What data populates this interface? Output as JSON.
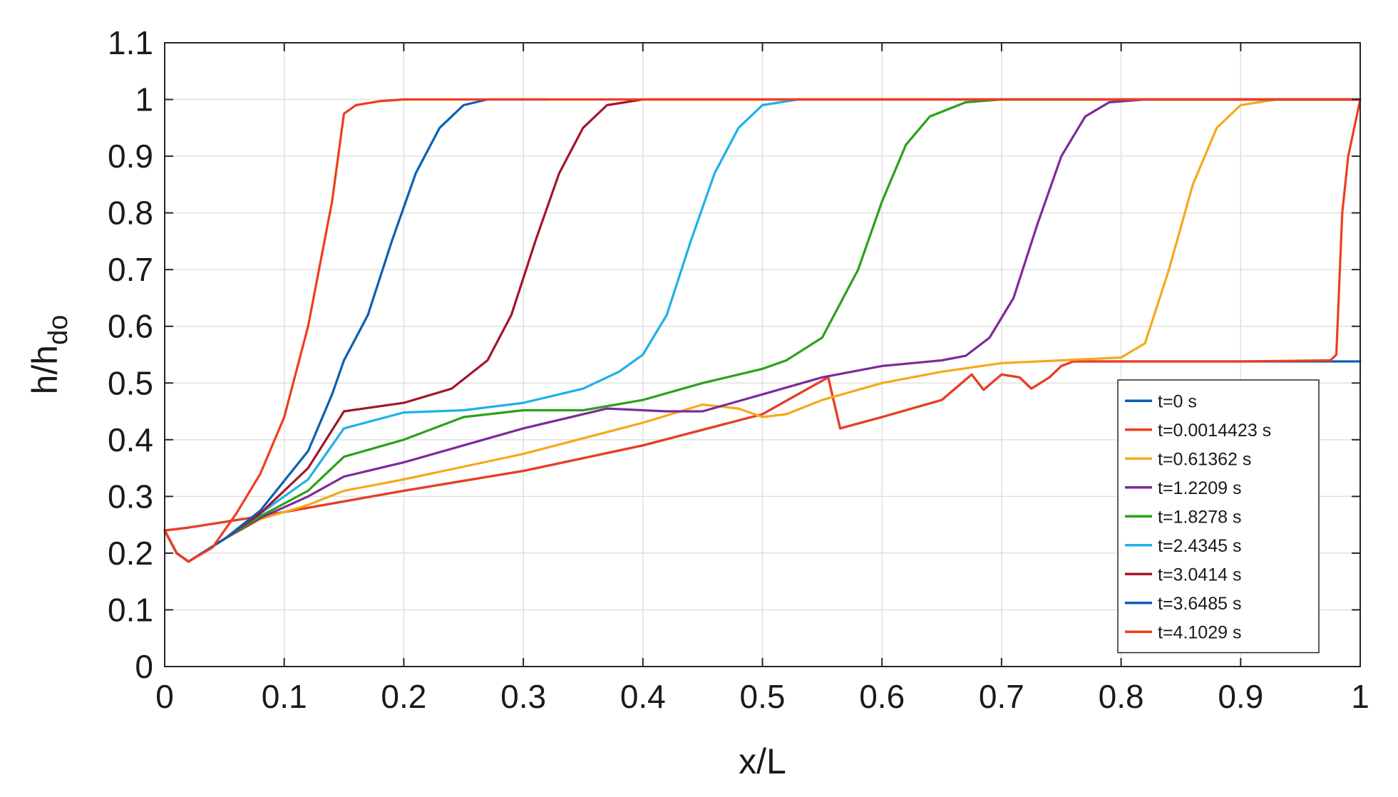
{
  "chart_data": {
    "type": "line",
    "title": "",
    "xlabel": "x/L",
    "ylabel": "h/h",
    "ylabel_sub": "do",
    "xlim": [
      0,
      1
    ],
    "ylim": [
      0,
      1.1
    ],
    "xticks": [
      0,
      0.1,
      0.2,
      0.3,
      0.4,
      0.5,
      0.6,
      0.7,
      0.8,
      0.9,
      1
    ],
    "xtick_labels": [
      "0",
      "0.1",
      "0.2",
      "0.3",
      "0.4",
      "0.5",
      "0.6",
      "0.7",
      "0.8",
      "0.9",
      "1"
    ],
    "yticks": [
      0,
      0.1,
      0.2,
      0.3,
      0.4,
      0.5,
      0.6,
      0.7,
      0.8,
      0.9,
      1,
      1.1
    ],
    "ytick_labels": [
      "0",
      "0.1",
      "0.2",
      "0.3",
      "0.4",
      "0.5",
      "0.6",
      "0.7",
      "0.8",
      "0.9",
      "1",
      "1.1"
    ],
    "grid": true,
    "legend_position": "bottom-right",
    "series": [
      {
        "name": "t=0 s",
        "color": "#0b5fb4",
        "points": [
          [
            0,
            0.24
          ],
          [
            0.02,
            0.245
          ],
          [
            0.05,
            0.255
          ],
          [
            0.08,
            0.265
          ],
          [
            0.12,
            0.28
          ],
          [
            0.2,
            0.31
          ],
          [
            0.3,
            0.345
          ],
          [
            0.4,
            0.39
          ],
          [
            0.5,
            0.445
          ],
          [
            0.555,
            0.51
          ],
          [
            0.565,
            0.42
          ],
          [
            0.6,
            0.44
          ],
          [
            0.65,
            0.47
          ],
          [
            0.675,
            0.515
          ],
          [
            0.685,
            0.488
          ],
          [
            0.7,
            0.515
          ],
          [
            0.715,
            0.51
          ],
          [
            0.725,
            0.49
          ],
          [
            0.74,
            0.51
          ],
          [
            0.75,
            0.53
          ],
          [
            0.76,
            0.538
          ],
          [
            0.8,
            0.538
          ],
          [
            0.9,
            0.538
          ],
          [
            1.0,
            0.538
          ]
        ]
      },
      {
        "name": "t=0.0014423 s",
        "color": "#f03c1e",
        "points": [
          [
            0,
            0.24
          ],
          [
            0.02,
            0.245
          ],
          [
            0.05,
            0.255
          ],
          [
            0.08,
            0.265
          ],
          [
            0.12,
            0.28
          ],
          [
            0.2,
            0.31
          ],
          [
            0.3,
            0.345
          ],
          [
            0.4,
            0.39
          ],
          [
            0.5,
            0.445
          ],
          [
            0.555,
            0.51
          ],
          [
            0.565,
            0.42
          ],
          [
            0.6,
            0.44
          ],
          [
            0.65,
            0.47
          ],
          [
            0.675,
            0.515
          ],
          [
            0.685,
            0.488
          ],
          [
            0.7,
            0.515
          ],
          [
            0.715,
            0.51
          ],
          [
            0.725,
            0.49
          ],
          [
            0.74,
            0.51
          ],
          [
            0.75,
            0.53
          ],
          [
            0.76,
            0.538
          ],
          [
            0.8,
            0.538
          ],
          [
            0.9,
            0.538
          ],
          [
            0.975,
            0.54
          ],
          [
            0.98,
            0.55
          ],
          [
            0.985,
            0.8
          ],
          [
            0.99,
            0.9
          ],
          [
            1.0,
            1.0
          ]
        ]
      },
      {
        "name": "t=0.61362 s",
        "color": "#f7a81b",
        "points": [
          [
            0,
            0.24
          ],
          [
            0.01,
            0.2
          ],
          [
            0.02,
            0.185
          ],
          [
            0.05,
            0.225
          ],
          [
            0.08,
            0.26
          ],
          [
            0.12,
            0.285
          ],
          [
            0.15,
            0.31
          ],
          [
            0.2,
            0.33
          ],
          [
            0.3,
            0.375
          ],
          [
            0.4,
            0.43
          ],
          [
            0.45,
            0.462
          ],
          [
            0.48,
            0.455
          ],
          [
            0.5,
            0.44
          ],
          [
            0.52,
            0.445
          ],
          [
            0.55,
            0.47
          ],
          [
            0.6,
            0.5
          ],
          [
            0.65,
            0.52
          ],
          [
            0.7,
            0.535
          ],
          [
            0.75,
            0.54
          ],
          [
            0.8,
            0.545
          ],
          [
            0.82,
            0.57
          ],
          [
            0.84,
            0.7
          ],
          [
            0.86,
            0.85
          ],
          [
            0.88,
            0.95
          ],
          [
            0.9,
            0.99
          ],
          [
            0.93,
            1.0
          ],
          [
            1.0,
            1.0
          ]
        ]
      },
      {
        "name": "t=1.2209 s",
        "color": "#7e2a9a",
        "points": [
          [
            0,
            0.24
          ],
          [
            0.01,
            0.2
          ],
          [
            0.02,
            0.185
          ],
          [
            0.05,
            0.225
          ],
          [
            0.08,
            0.262
          ],
          [
            0.12,
            0.3
          ],
          [
            0.15,
            0.335
          ],
          [
            0.2,
            0.36
          ],
          [
            0.3,
            0.42
          ],
          [
            0.37,
            0.455
          ],
          [
            0.42,
            0.45
          ],
          [
            0.45,
            0.45
          ],
          [
            0.5,
            0.48
          ],
          [
            0.55,
            0.51
          ],
          [
            0.6,
            0.53
          ],
          [
            0.65,
            0.54
          ],
          [
            0.67,
            0.548
          ],
          [
            0.69,
            0.58
          ],
          [
            0.71,
            0.65
          ],
          [
            0.73,
            0.78
          ],
          [
            0.75,
            0.9
          ],
          [
            0.77,
            0.97
          ],
          [
            0.79,
            0.995
          ],
          [
            0.82,
            1.0
          ],
          [
            1.0,
            1.0
          ]
        ]
      },
      {
        "name": "t=1.8278 s",
        "color": "#2ca01c",
        "points": [
          [
            0,
            0.24
          ],
          [
            0.01,
            0.2
          ],
          [
            0.02,
            0.185
          ],
          [
            0.05,
            0.225
          ],
          [
            0.08,
            0.265
          ],
          [
            0.12,
            0.31
          ],
          [
            0.15,
            0.37
          ],
          [
            0.2,
            0.4
          ],
          [
            0.25,
            0.44
          ],
          [
            0.3,
            0.452
          ],
          [
            0.35,
            0.452
          ],
          [
            0.4,
            0.47
          ],
          [
            0.45,
            0.5
          ],
          [
            0.5,
            0.525
          ],
          [
            0.52,
            0.54
          ],
          [
            0.55,
            0.58
          ],
          [
            0.58,
            0.7
          ],
          [
            0.6,
            0.82
          ],
          [
            0.62,
            0.92
          ],
          [
            0.64,
            0.97
          ],
          [
            0.67,
            0.995
          ],
          [
            0.7,
            1.0
          ],
          [
            1.0,
            1.0
          ]
        ]
      },
      {
        "name": "t=2.4345 s",
        "color": "#1eb0e6",
        "points": [
          [
            0,
            0.24
          ],
          [
            0.01,
            0.2
          ],
          [
            0.02,
            0.185
          ],
          [
            0.05,
            0.225
          ],
          [
            0.08,
            0.27
          ],
          [
            0.12,
            0.33
          ],
          [
            0.15,
            0.42
          ],
          [
            0.2,
            0.448
          ],
          [
            0.25,
            0.452
          ],
          [
            0.3,
            0.465
          ],
          [
            0.35,
            0.49
          ],
          [
            0.38,
            0.52
          ],
          [
            0.4,
            0.55
          ],
          [
            0.42,
            0.62
          ],
          [
            0.44,
            0.75
          ],
          [
            0.46,
            0.87
          ],
          [
            0.48,
            0.95
          ],
          [
            0.5,
            0.99
          ],
          [
            0.53,
            1.0
          ],
          [
            0.58,
            1.0
          ],
          [
            1.0,
            1.0
          ]
        ]
      },
      {
        "name": "t=3.0414 s",
        "color": "#a3162a",
        "points": [
          [
            0,
            0.24
          ],
          [
            0.01,
            0.2
          ],
          [
            0.02,
            0.185
          ],
          [
            0.05,
            0.225
          ],
          [
            0.08,
            0.27
          ],
          [
            0.12,
            0.35
          ],
          [
            0.15,
            0.45
          ],
          [
            0.2,
            0.465
          ],
          [
            0.24,
            0.49
          ],
          [
            0.27,
            0.54
          ],
          [
            0.29,
            0.62
          ],
          [
            0.31,
            0.75
          ],
          [
            0.33,
            0.87
          ],
          [
            0.35,
            0.95
          ],
          [
            0.37,
            0.99
          ],
          [
            0.4,
            1.0
          ],
          [
            1.0,
            1.0
          ]
        ]
      },
      {
        "name": "t=3.6485 s",
        "color": "#0b5fb4",
        "points": [
          [
            0,
            0.24
          ],
          [
            0.01,
            0.2
          ],
          [
            0.02,
            0.185
          ],
          [
            0.05,
            0.225
          ],
          [
            0.08,
            0.275
          ],
          [
            0.12,
            0.38
          ],
          [
            0.14,
            0.48
          ],
          [
            0.15,
            0.54
          ],
          [
            0.17,
            0.62
          ],
          [
            0.19,
            0.75
          ],
          [
            0.21,
            0.87
          ],
          [
            0.23,
            0.95
          ],
          [
            0.25,
            0.99
          ],
          [
            0.27,
            1.0
          ],
          [
            0.32,
            1.0
          ]
        ]
      },
      {
        "name": "t=4.1029 s",
        "color": "#f03c1e",
        "points": [
          [
            0,
            0.24
          ],
          [
            0.01,
            0.2
          ],
          [
            0.02,
            0.185
          ],
          [
            0.04,
            0.21
          ],
          [
            0.06,
            0.27
          ],
          [
            0.08,
            0.34
          ],
          [
            0.1,
            0.44
          ],
          [
            0.12,
            0.6
          ],
          [
            0.14,
            0.82
          ],
          [
            0.15,
            0.975
          ],
          [
            0.16,
            0.99
          ],
          [
            0.18,
            0.997
          ],
          [
            0.2,
            1.0
          ],
          [
            1.0,
            1.0
          ]
        ]
      }
    ]
  }
}
